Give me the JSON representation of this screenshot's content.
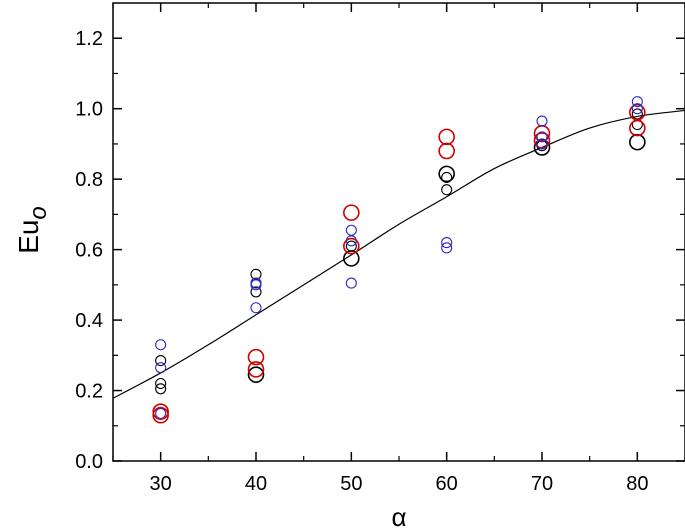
{
  "chart_data": {
    "type": "scatter",
    "xlabel": "α",
    "ylabel": "Eu",
    "ylabel_subscript": "o",
    "xlim": [
      25,
      85
    ],
    "ylim": [
      0.0,
      1.3
    ],
    "x_ticks": [
      30,
      40,
      50,
      60,
      70,
      80
    ],
    "y_ticks": [
      0.0,
      0.2,
      0.4,
      0.6,
      0.8,
      1.0,
      1.2
    ],
    "y_tick_format_decimals": 1,
    "grid": false,
    "series": [
      {
        "color": "#000000",
        "marker": "open-circle",
        "points": [
          {
            "x": 30,
            "y": 0.285,
            "size": "small"
          },
          {
            "x": 30,
            "y": 0.22,
            "size": "small"
          },
          {
            "x": 30,
            "y": 0.205,
            "size": "small"
          },
          {
            "x": 40,
            "y": 0.53,
            "size": "small"
          },
          {
            "x": 40,
            "y": 0.505,
            "size": "small"
          },
          {
            "x": 40,
            "y": 0.48,
            "size": "small"
          },
          {
            "x": 40,
            "y": 0.245,
            "size": "large"
          },
          {
            "x": 50,
            "y": 0.61,
            "size": "small"
          },
          {
            "x": 50,
            "y": 0.575,
            "size": "large"
          },
          {
            "x": 60,
            "y": 0.815,
            "size": "large"
          },
          {
            "x": 60,
            "y": 0.805,
            "size": "small"
          },
          {
            "x": 60,
            "y": 0.77,
            "size": "small"
          },
          {
            "x": 70,
            "y": 0.89,
            "size": "large"
          },
          {
            "x": 70,
            "y": 0.895,
            "size": "small"
          },
          {
            "x": 80,
            "y": 0.985,
            "size": "small"
          },
          {
            "x": 80,
            "y": 0.955,
            "size": "small"
          },
          {
            "x": 80,
            "y": 0.905,
            "size": "large"
          }
        ]
      },
      {
        "color": "#d40000",
        "marker": "open-circle",
        "points": [
          {
            "x": 30,
            "y": 0.14,
            "size": "large"
          },
          {
            "x": 30,
            "y": 0.13,
            "size": "large"
          },
          {
            "x": 40,
            "y": 0.295,
            "size": "large"
          },
          {
            "x": 40,
            "y": 0.26,
            "size": "large"
          },
          {
            "x": 50,
            "y": 0.705,
            "size": "large"
          },
          {
            "x": 50,
            "y": 0.61,
            "size": "large"
          },
          {
            "x": 60,
            "y": 0.92,
            "size": "large"
          },
          {
            "x": 60,
            "y": 0.88,
            "size": "large"
          },
          {
            "x": 70,
            "y": 0.93,
            "size": "large"
          },
          {
            "x": 70,
            "y": 0.91,
            "size": "large"
          },
          {
            "x": 80,
            "y": 0.99,
            "size": "large"
          },
          {
            "x": 80,
            "y": 0.945,
            "size": "large"
          }
        ]
      },
      {
        "color": "#2a2ac8",
        "marker": "open-circle",
        "points": [
          {
            "x": 30,
            "y": 0.33,
            "size": "small"
          },
          {
            "x": 30,
            "y": 0.265,
            "size": "small"
          },
          {
            "x": 30,
            "y": 0.135,
            "size": "small"
          },
          {
            "x": 40,
            "y": 0.505,
            "size": "small"
          },
          {
            "x": 40,
            "y": 0.5,
            "size": "small"
          },
          {
            "x": 40,
            "y": 0.435,
            "size": "small"
          },
          {
            "x": 50,
            "y": 0.655,
            "size": "small"
          },
          {
            "x": 50,
            "y": 0.625,
            "size": "small"
          },
          {
            "x": 50,
            "y": 0.505,
            "size": "small"
          },
          {
            "x": 60,
            "y": 0.62,
            "size": "small"
          },
          {
            "x": 60,
            "y": 0.605,
            "size": "small"
          },
          {
            "x": 70,
            "y": 0.965,
            "size": "small"
          },
          {
            "x": 70,
            "y": 0.92,
            "size": "small"
          },
          {
            "x": 70,
            "y": 0.9,
            "size": "small"
          },
          {
            "x": 80,
            "y": 1.02,
            "size": "small"
          },
          {
            "x": 80,
            "y": 1.0,
            "size": "small"
          }
        ]
      }
    ],
    "fit_curve": {
      "color": "#000000",
      "points": [
        [
          25,
          0.178
        ],
        [
          30,
          0.25
        ],
        [
          35,
          0.33
        ],
        [
          40,
          0.415
        ],
        [
          45,
          0.5
        ],
        [
          50,
          0.585
        ],
        [
          55,
          0.672
        ],
        [
          60,
          0.75
        ],
        [
          65,
          0.83
        ],
        [
          70,
          0.89
        ],
        [
          75,
          0.945
        ],
        [
          80,
          0.978
        ],
        [
          85,
          0.995
        ]
      ]
    }
  }
}
